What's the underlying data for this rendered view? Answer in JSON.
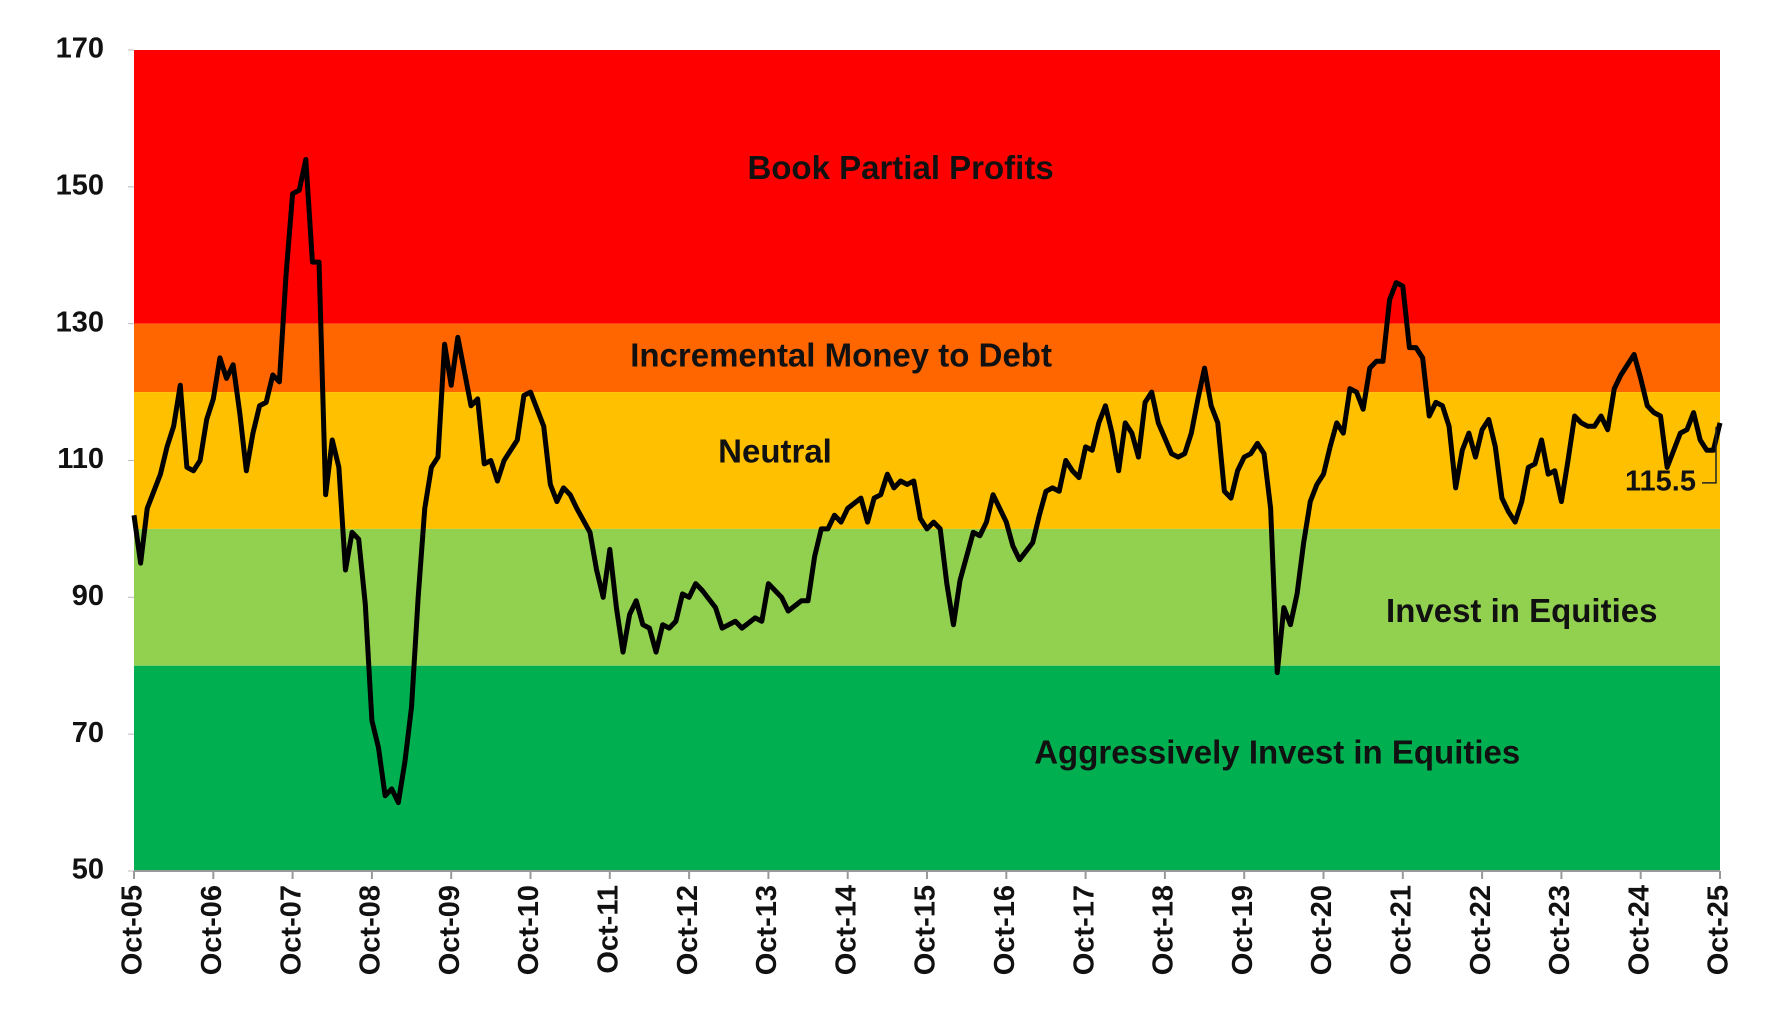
{
  "chart_data": {
    "type": "line",
    "color": "#000000",
    "xlim": [
      0,
      240
    ],
    "xticks": [
      {
        "value": 0,
        "label": "Oct-05"
      },
      {
        "value": 12,
        "label": "Oct-06"
      },
      {
        "value": 24,
        "label": "Oct-07"
      },
      {
        "value": 36,
        "label": "Oct-08"
      },
      {
        "value": 48,
        "label": "Oct-09"
      },
      {
        "value": 60,
        "label": "Oct-10"
      },
      {
        "value": 72,
        "label": "Oct-11"
      },
      {
        "value": 84,
        "label": "Oct-12"
      },
      {
        "value": 96,
        "label": "Oct-13"
      },
      {
        "value": 108,
        "label": "Oct-14"
      },
      {
        "value": 120,
        "label": "Oct-15"
      },
      {
        "value": 132,
        "label": "Oct-16"
      },
      {
        "value": 144,
        "label": "Oct-17"
      },
      {
        "value": 156,
        "label": "Oct-18"
      },
      {
        "value": 168,
        "label": "Oct-19"
      },
      {
        "value": 180,
        "label": "Oct-20"
      },
      {
        "value": 192,
        "label": "Oct-21"
      },
      {
        "value": 204,
        "label": "Oct-22"
      },
      {
        "value": 216,
        "label": "Oct-23"
      },
      {
        "value": 228,
        "label": "Oct-24"
      },
      {
        "value": 240,
        "label": "Oct-25"
      }
    ],
    "ylim": [
      50,
      170
    ],
    "yticks": [
      50,
      70,
      90,
      110,
      130,
      150,
      170
    ],
    "bands": [
      {
        "from": 130,
        "to": 170,
        "color": "#ff0000",
        "label": "Book Partial Profits"
      },
      {
        "from": 120,
        "to": 130,
        "color": "#ff6600",
        "label": "Incremental Money to Debt"
      },
      {
        "from": 100,
        "to": 120,
        "color": "#ffc000",
        "label": "Neutral"
      },
      {
        "from": 80,
        "to": 100,
        "color": "#92d050",
        "label": "Invest in Equities"
      },
      {
        "from": 50,
        "to": 80,
        "color": "#00b050",
        "label": "Aggressively Invest in Equities"
      }
    ],
    "annotations": [
      {
        "text": "115.5"
      }
    ],
    "x": [
      0,
      1,
      2,
      3,
      4,
      5,
      6,
      7,
      8,
      9,
      10,
      11,
      12,
      13,
      14,
      15,
      16,
      17,
      18,
      19,
      20,
      21,
      22,
      23,
      24,
      25,
      26,
      27,
      28,
      29,
      30,
      31,
      32,
      33,
      34,
      35,
      36,
      37,
      38,
      39,
      40,
      41,
      42,
      43,
      44,
      45,
      46,
      47,
      48,
      49,
      50,
      51,
      52,
      53,
      54,
      55,
      56,
      57,
      58,
      59,
      60,
      61,
      62,
      63,
      64,
      65,
      66,
      67,
      69,
      70,
      71,
      72,
      73,
      74,
      75,
      76,
      77,
      78,
      79,
      80,
      81,
      82,
      83,
      84,
      85,
      86,
      88,
      89,
      91,
      92,
      94,
      95,
      96,
      97,
      98,
      99,
      101,
      102,
      103,
      104,
      105,
      106,
      107,
      108,
      110,
      111,
      112,
      113,
      114,
      115,
      116,
      117,
      118,
      119,
      120,
      121,
      122,
      123,
      124,
      125,
      126,
      127,
      128,
      129,
      130,
      131,
      132,
      133,
      134,
      136,
      137,
      138,
      139,
      140,
      141,
      142,
      143,
      144,
      145,
      146,
      147,
      148,
      149,
      150,
      151,
      152,
      153,
      154,
      155,
      157,
      158,
      159,
      160,
      161,
      162,
      163,
      164,
      165,
      166,
      167,
      168,
      169,
      170,
      171,
      172,
      173,
      174,
      175,
      176,
      177,
      178,
      179,
      180,
      181,
      182,
      183,
      184,
      185,
      186,
      187,
      188,
      189,
      190,
      191,
      192,
      193,
      194,
      195,
      196,
      197,
      198,
      199,
      200,
      201,
      202,
      203,
      204,
      205,
      206,
      207,
      208,
      209,
      210,
      211,
      212,
      213,
      214,
      215,
      216,
      217,
      218,
      219,
      220,
      221,
      222,
      223,
      224,
      225,
      226,
      227,
      228,
      229,
      230,
      231,
      232,
      233,
      234,
      235,
      236,
      237,
      238,
      239,
      240
    ],
    "values": [
      102,
      95,
      103,
      105.5,
      108,
      112,
      115,
      121,
      109,
      108.5,
      110,
      116,
      119,
      125,
      122,
      124,
      117,
      108.5,
      114,
      118,
      118.5,
      122.5,
      121.5,
      137,
      149,
      149.5,
      154,
      139,
      139,
      105,
      113,
      109,
      94,
      99.5,
      98.5,
      89,
      72,
      68,
      61,
      62,
      60,
      66,
      74,
      90,
      103,
      109,
      110.5,
      127,
      121,
      128,
      123,
      118,
      119,
      109.5,
      110,
      107,
      110,
      111.5,
      113,
      119.5,
      120,
      117.5,
      115,
      106.5,
      104,
      106,
      105,
      103,
      99.5,
      94,
      90,
      97,
      88.5,
      82,
      87.5,
      89.5,
      86,
      85.5,
      82,
      86,
      85.5,
      86.5,
      90.5,
      90,
      92,
      91,
      88.5,
      85.5,
      86.5,
      85.5,
      87,
      86.5,
      92,
      91,
      90,
      88,
      89.5,
      89.5,
      96,
      100,
      100,
      102,
      101,
      103,
      104.5,
      101,
      104.5,
      105,
      108,
      106,
      107,
      106.5,
      107,
      101.5,
      100,
      101,
      100,
      92,
      86,
      92.5,
      96,
      99.5,
      99,
      101,
      105,
      103,
      101,
      97.5,
      95.5,
      98,
      102,
      105.5,
      106,
      105.5,
      110,
      108.5,
      107.5,
      112,
      111.5,
      115.5,
      118,
      114,
      108.5,
      115.5,
      114,
      110.5,
      118.5,
      120,
      115.5,
      111,
      110.5,
      111,
      114,
      119,
      123.5,
      118,
      115.5,
      105.5,
      104.5,
      108.5,
      110.5,
      111,
      112.5,
      111,
      103,
      79,
      88.5,
      86,
      90.5,
      98,
      104,
      106.5,
      108,
      112,
      115.5,
      114,
      120.5,
      120,
      117.5,
      123.5,
      124.5,
      124.5,
      133.5,
      136,
      135.5,
      126.5,
      126.5,
      125,
      116.5,
      118.5,
      118,
      115,
      106,
      111.5,
      114,
      110.5,
      114.5,
      116,
      112,
      104.5,
      102.5,
      101,
      104,
      109,
      109.5,
      113,
      108,
      108.5,
      104,
      110,
      116.5,
      115.5,
      115,
      115,
      116.5,
      114.5,
      120.5,
      122.5,
      124,
      125.5,
      122,
      118,
      117,
      116.5,
      109,
      111.5,
      114,
      114.5,
      117,
      113,
      111.5,
      111.5,
      115.5
    ]
  }
}
